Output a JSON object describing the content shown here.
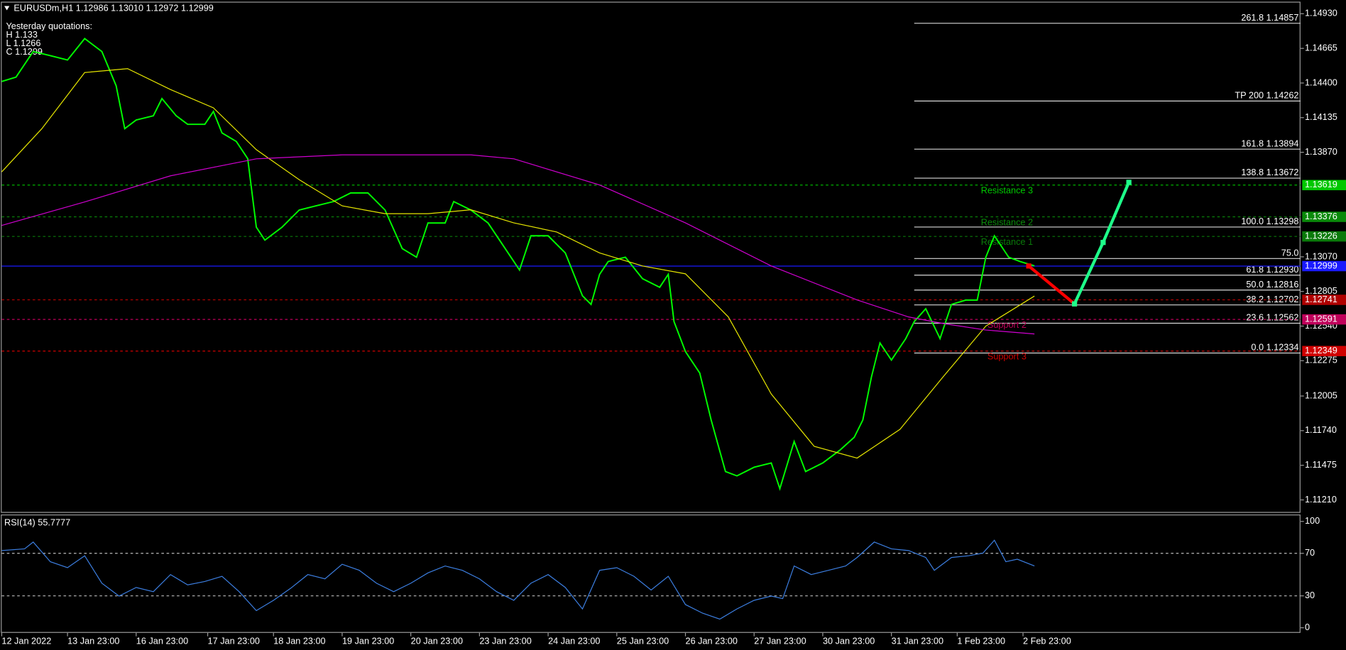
{
  "chart_data": [
    {
      "type": "line",
      "title": "EURUSDm,H1  1.12986 1.13010 1.12972 1.12999",
      "annotations": [
        "Yesterday quotations:",
        "H 1.133",
        "L 1.1266",
        "C 1.1299"
      ],
      "xlim": [
        0,
        454
      ],
      "ylim": [
        1.11118,
        1.15022
      ],
      "yticks": [
        {
          "value": 1.1493,
          "label": "1.14930"
        },
        1.14665,
        {
          "value": 1.144,
          "label": "1.14400"
        },
        1.14135,
        {
          "value": 1.1387,
          "label": "1.13870"
        },
        {
          "value": 1.1307,
          "label": "1.13070"
        },
        1.12805,
        {
          "value": 1.1254,
          "label": "1.12540"
        },
        1.12275,
        1.12005,
        {
          "value": 1.1174,
          "label": "1.11740"
        },
        1.11475,
        {
          "value": 1.1121,
          "label": "1.11210"
        }
      ],
      "series": [
        {
          "color": "#00ff00",
          "x": [
            0,
            5,
            11,
            17,
            23,
            29,
            35,
            40,
            43,
            47,
            53,
            56,
            61,
            65,
            71,
            74,
            77,
            82,
            86,
            89,
            92,
            98,
            104,
            110,
            116,
            122,
            128,
            134,
            140,
            145,
            149,
            155,
            158,
            164,
            170,
            176,
            181,
            185,
            191,
            197,
            203,
            206,
            209,
            212,
            218,
            224,
            230,
            233,
            235,
            239,
            244,
            248,
            253,
            257,
            263,
            269,
            272,
            277,
            281,
            287,
            293,
            298,
            301,
            304,
            307,
            311,
            316,
            319,
            323,
            328,
            332,
            337,
            341,
            344,
            347,
            352,
            356,
            361
          ],
          "values": [
            1.14412,
            1.14445,
            1.14641,
            1.14609,
            1.14576,
            1.1474,
            1.14641,
            1.14379,
            1.14051,
            1.14117,
            1.14149,
            1.14281,
            1.14149,
            1.14084,
            1.14084,
            1.14182,
            1.14018,
            1.13953,
            1.13821,
            1.13297,
            1.13198,
            1.13297,
            1.13428,
            1.13461,
            1.13493,
            1.13559,
            1.13559,
            1.13428,
            1.13133,
            1.13067,
            1.13329,
            1.13329,
            1.13493,
            1.13428,
            1.13329,
            1.13133,
            1.12969,
            1.13231,
            1.13231,
            1.131,
            1.12772,
            1.12706,
            1.12936,
            1.13034,
            1.13067,
            1.12903,
            1.12837,
            1.12936,
            1.12575,
            1.12345,
            1.12181,
            1.11821,
            1.11427,
            1.11394,
            1.1146,
            1.11493,
            1.11296,
            1.11657,
            1.11427,
            1.11493,
            1.11591,
            1.11689,
            1.11821,
            1.12149,
            1.12411,
            1.1228,
            1.12444,
            1.12575,
            1.12673,
            1.12444,
            1.12706,
            1.12739,
            1.12739,
            1.13067,
            1.13231,
            1.13067,
            1.13034,
            1.13001
          ]
        },
        {
          "color": "#e6e600",
          "x": [
            0,
            14,
            29,
            44,
            59,
            74,
            89,
            104,
            119,
            134,
            149,
            164,
            179,
            194,
            209,
            224,
            239,
            254,
            269,
            284,
            299,
            314,
            329,
            344,
            361
          ],
          "values": [
            1.1372,
            1.1405,
            1.1448,
            1.1451,
            1.1435,
            1.1421,
            1.1389,
            1.1366,
            1.1346,
            1.134,
            1.134,
            1.1343,
            1.1333,
            1.1326,
            1.131,
            1.13,
            1.1294,
            1.1261,
            1.1202,
            1.1162,
            1.1153,
            1.1175,
            1.1215,
            1.1254,
            1.1277
          ]
        },
        {
          "color": "#d000d0",
          "x": [
            0,
            29,
            59,
            89,
            119,
            164,
            179,
            209,
            239,
            269,
            299,
            317,
            329,
            344,
            361
          ],
          "values": [
            1.1331,
            1.1349,
            1.1369,
            1.1382,
            1.1385,
            1.1385,
            1.1382,
            1.1362,
            1.1333,
            1.13,
            1.1274,
            1.1261,
            1.1256,
            1.1251,
            1.1248
          ]
        }
      ],
      "levels": [
        {
          "value": 1.13619,
          "name": "Resistance 3",
          "color": "#00c800",
          "style": "dashed"
        },
        {
          "value": 1.13376,
          "name": "Resistance 2",
          "color": "#0a8a0a",
          "style": "dashed"
        },
        {
          "value": 1.13226,
          "name": "Resistance 1",
          "color": "#0a7a0a",
          "style": "dashed"
        },
        {
          "value": 1.12999,
          "color": "#1a1aff",
          "style": "solid"
        },
        {
          "value": 1.12741,
          "color": "#b00000",
          "style": "dashed"
        },
        {
          "value": 1.12591,
          "name": "Support 2",
          "color": "#c0005a",
          "style": "dashed"
        },
        {
          "value": 1.12349,
          "name": "Support 3",
          "color": "#d00000",
          "style": "dashed"
        }
      ],
      "fib": [
        {
          "label": "261.8 1.14857",
          "value": 1.14857
        },
        {
          "label": "TP 200 1.14262",
          "value": 1.14262
        },
        {
          "label": "161.8 1.13894",
          "value": 1.13894
        },
        {
          "label": "138.8 1.13672",
          "value": 1.13672
        },
        {
          "label": "100.0 1.13298",
          "value": 1.13298
        },
        {
          "label": "75.0",
          "value": 1.13057
        },
        {
          "label": "61.8 1.12930",
          "value": 1.1293
        },
        {
          "label": "50.0 1.12816",
          "value": 1.12816
        },
        {
          "label": "38.2 1.12702",
          "value": 1.12702
        },
        {
          "label": "23.6 1.12562",
          "value": 1.12562
        },
        {
          "label": "0.0 1.12334",
          "value": 1.12334
        }
      ],
      "forecast": [
        {
          "color": "#ff0000",
          "x": [
            359,
            375
          ],
          "values": [
            1.13,
            1.1271
          ]
        },
        {
          "color": "#1eff8a",
          "x": [
            375,
            385,
            394
          ],
          "values": [
            1.1271,
            1.1318,
            1.1364
          ]
        }
      ]
    },
    {
      "type": "line",
      "title": "RSI(14) 55.7777",
      "xlim": [
        0,
        454
      ],
      "ylim": [
        -4.8,
        106.5
      ],
      "yticks": [
        100,
        70,
        30,
        0
      ],
      "levels": [
        70,
        30
      ],
      "xticks": [
        {
          "value": 0,
          "label": "12 Jan 2022"
        },
        {
          "value": 23,
          "label": "13 Jan 23:00"
        },
        {
          "value": 47,
          "label": "16 Jan 23:00"
        },
        {
          "value": 72,
          "label": "17 Jan 23:00"
        },
        {
          "value": 95,
          "label": "18 Jan 23:00"
        },
        {
          "value": 119,
          "label": "19 Jan 23:00"
        },
        {
          "value": 143,
          "label": "20 Jan 23:00"
        },
        {
          "value": 167,
          "label": "23 Jan 23:00"
        },
        {
          "value": 191,
          "label": "24 Jan 23:00"
        },
        {
          "value": 215,
          "label": "25 Jan 23:00"
        },
        {
          "value": 239,
          "label": "26 Jan 23:00"
        },
        {
          "value": 263,
          "label": "27 Jan 23:00"
        },
        {
          "value": 287,
          "label": "30 Jan 23:00"
        },
        {
          "value": 311,
          "label": "31 Jan 23:00"
        },
        {
          "value": 334,
          "label": "1 Feb 23:00"
        },
        {
          "value": 357,
          "label": "2 Feb 23:00"
        }
      ],
      "series": [
        {
          "color": "#3c7ee0",
          "x": [
            0,
            8,
            11,
            17,
            23,
            29,
            35,
            41,
            47,
            53,
            59,
            65,
            71,
            77,
            83,
            89,
            95,
            101,
            107,
            113,
            119,
            125,
            131,
            137,
            143,
            149,
            155,
            161,
            167,
            173,
            179,
            185,
            191,
            197,
            203,
            209,
            215,
            221,
            227,
            233,
            239,
            245,
            251,
            257,
            263,
            269,
            273,
            277,
            283,
            289,
            295,
            299,
            305,
            311,
            317,
            323,
            326,
            332,
            338,
            343,
            347,
            351,
            355,
            361
          ],
          "values": [
            72.6,
            74.2,
            80.6,
            62.1,
            56.5,
            67.7,
            41.9,
            29.8,
            37.9,
            33.9,
            50.0,
            40.3,
            43.5,
            48.4,
            33.9,
            16.1,
            25.8,
            37.1,
            50.0,
            46.0,
            59.7,
            54.0,
            41.9,
            33.9,
            41.9,
            51.6,
            58.1,
            54.0,
            46.0,
            33.9,
            25.8,
            41.9,
            50.0,
            37.9,
            17.7,
            54.0,
            56.5,
            48.4,
            35.5,
            48.4,
            21.8,
            13.7,
            8.1,
            17.7,
            25.8,
            29.8,
            27.4,
            58.1,
            50.0,
            54.0,
            58.1,
            66.1,
            80.6,
            74.2,
            72.6,
            66.1,
            54.0,
            66.1,
            67.7,
            70.2,
            82.3,
            62.1,
            64.5,
            58.1
          ]
        }
      ]
    }
  ]
}
